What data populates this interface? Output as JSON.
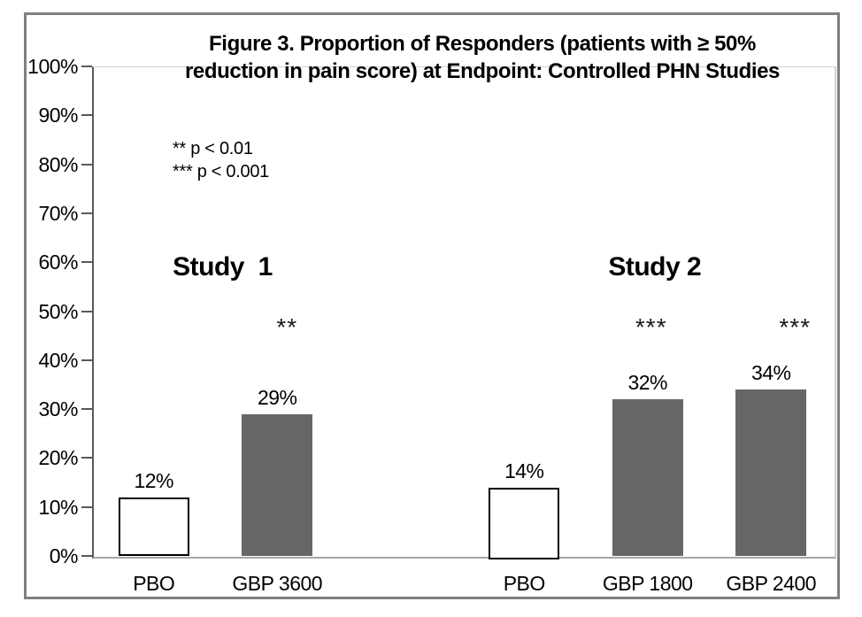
{
  "chart_data": {
    "type": "bar",
    "title": "Figure 3. Proportion of Responders (patients with ≥ 50% reduction in pain score) at Endpoint: Controlled PHN Studies",
    "title_lines": [
      "Figure 3. Proportion of Responders (patients with ≥ 50%",
      "reduction in pain score) at Endpoint: Controlled PHN Studies"
    ],
    "xlabel": "",
    "ylabel": "",
    "ylim": [
      0,
      100
    ],
    "ytick_step": 10,
    "ytick_labels": [
      "0%",
      "10%",
      "20%",
      "30%",
      "40%",
      "50%",
      "60%",
      "70%",
      "80%",
      "90%",
      "100%"
    ],
    "grid": "off",
    "legend_position": "none",
    "categories": [
      "PBO",
      "GBP 3600",
      "PBO",
      "GBP 1800",
      "GBP 2400"
    ],
    "values": [
      12,
      29,
      14,
      32,
      34
    ],
    "bar_value_labels": [
      "12%",
      "29%",
      "14%",
      "32%",
      "34%"
    ],
    "bar_styles": [
      "placebo",
      "active",
      "placebo",
      "active",
      "active"
    ],
    "significance_markers": [
      "",
      "**",
      "",
      "***",
      "***"
    ],
    "groups": [
      {
        "label": "Study  1",
        "bar_indexes": [
          0,
          1
        ]
      },
      {
        "label": "Study 2",
        "bar_indexes": [
          2,
          3,
          4
        ]
      }
    ],
    "annotations": [
      "** p < 0.01",
      "*** p < 0.001"
    ],
    "bar_slots": [
      0,
      1,
      3,
      4,
      5
    ],
    "slot_count": 6,
    "colors": {
      "active_bar_fill": "#666666",
      "placebo_bar_fill": "#ffffff",
      "placebo_bar_border": "#000000",
      "axis_line": "#595959",
      "baseline": "#a6a6a6",
      "plot_border": "#d0d0d0",
      "figure_border": "#808080",
      "text": "#000000"
    }
  }
}
